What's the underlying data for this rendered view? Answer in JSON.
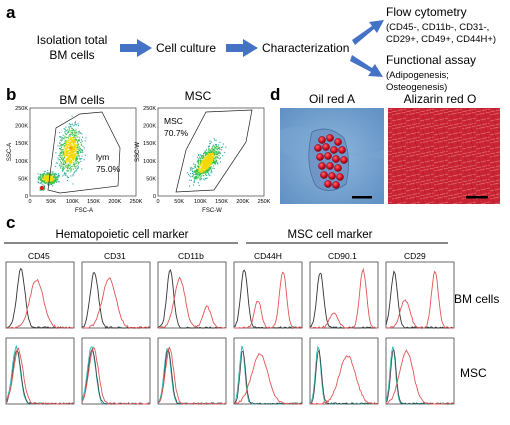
{
  "panels": {
    "a": {
      "letter": "a",
      "steps": [
        "Isolation total",
        "BM cells",
        "Cell culture",
        "Characterization"
      ],
      "flow": {
        "title": "Flow cytometry",
        "line1": "(CD45-, CD11b-, CD31-,",
        "line2": "CD29+, CD49+, CD44H+)"
      },
      "assay": {
        "title": "Functional assay",
        "line1": "(Adipogenesis;",
        "line2": "Osteogenesis)"
      }
    },
    "b": {
      "letter": "b",
      "plot1": {
        "title": "BM cells",
        "xlabel": "FSC-A",
        "ylabel": "SSC-A",
        "gate_name": "lym",
        "gate_pct": "75.0%",
        "xticks": [
          "0",
          "50K",
          "100K",
          "150K",
          "200K",
          "250K"
        ],
        "yticks": [
          "0",
          "50K",
          "100K",
          "150K",
          "200K",
          "250K"
        ]
      },
      "plot2": {
        "title": "MSC",
        "xlabel": "FSC-W",
        "ylabel": "SSC-W",
        "gate_name": "MSC",
        "gate_pct": "70.7%",
        "xticks": [
          "0",
          "50K",
          "100K",
          "150K",
          "200K",
          "250K"
        ],
        "yticks": [
          "0",
          "50K",
          "100K",
          "150K",
          "200K",
          "250K"
        ]
      }
    },
    "d": {
      "letter": "d",
      "stain1": "Oil red A",
      "stain2": "Alizarin red O"
    },
    "c": {
      "letter": "c",
      "group1": "Hematopoietic cell marker",
      "group2": "MSC cell marker",
      "markers": [
        "CD45",
        "CD31",
        "CD11b",
        "CD44H",
        "CD90.1",
        "CD29"
      ],
      "row_labels": [
        "BM cells",
        "MSC"
      ]
    }
  },
  "colors": {
    "arrow": "#4472c4",
    "control_trace": "#333333",
    "isotype_trace": "#2bb5b5",
    "sample_trace": "#e05555"
  }
}
